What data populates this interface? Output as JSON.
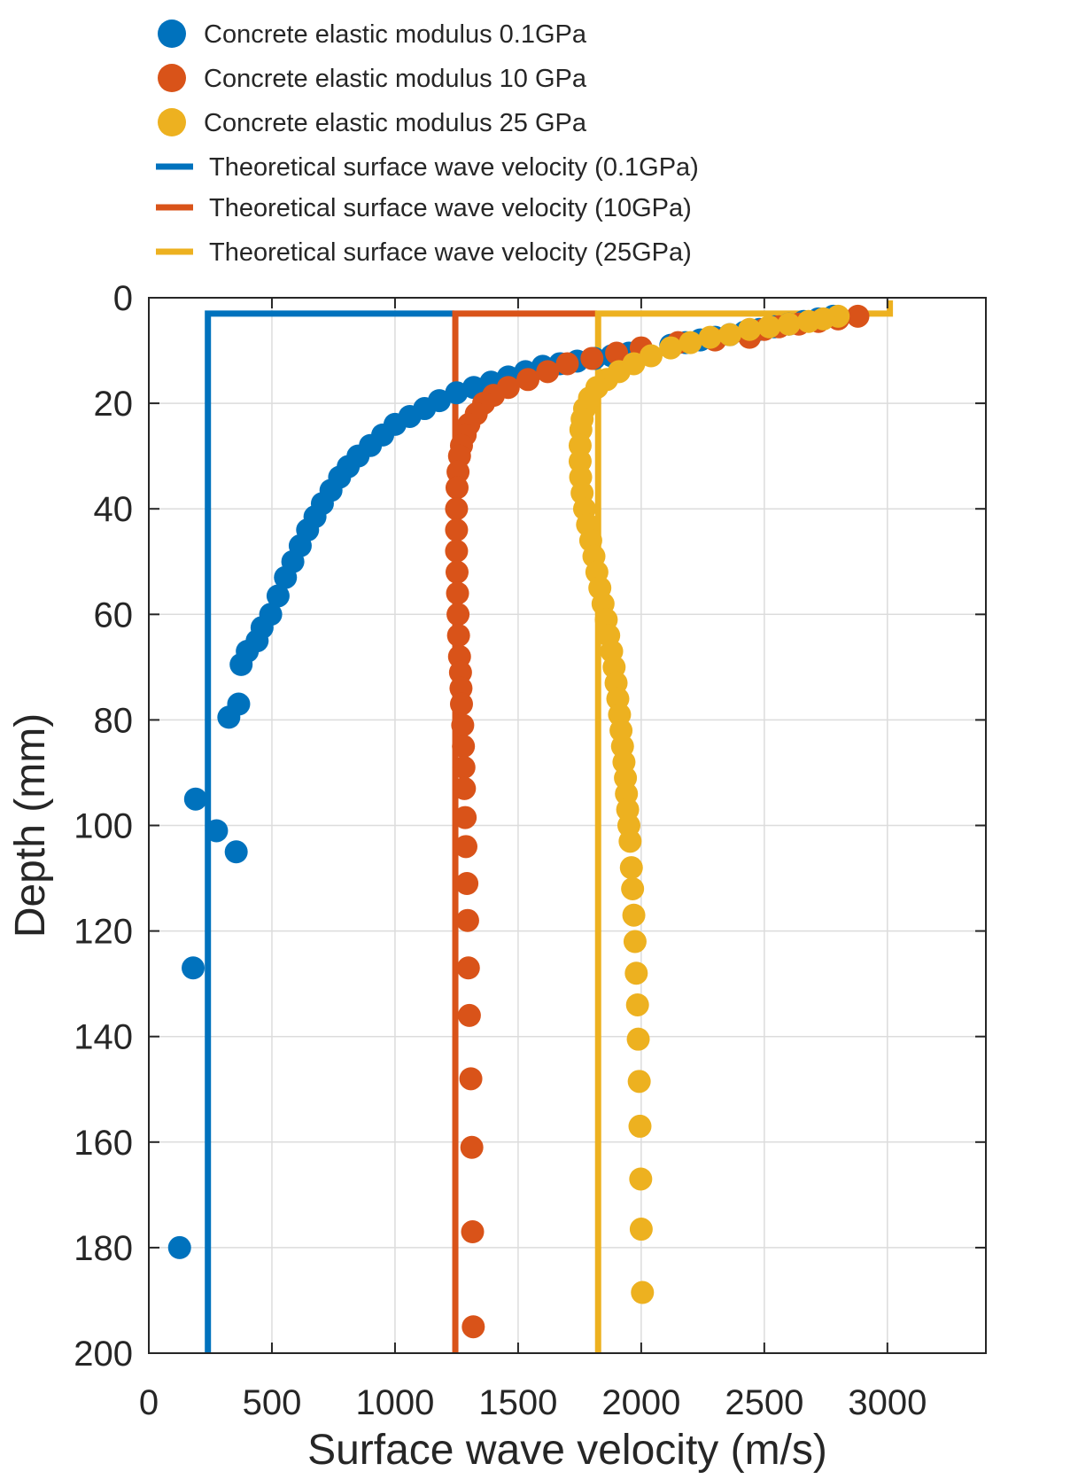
{
  "chart_data": {
    "type": "scatter",
    "xlabel": "Surface wave velocity (m/s)",
    "ylabel": "Depth (mm)",
    "xlim": [
      0,
      3400
    ],
    "ylim": [
      200,
      0
    ],
    "y_reversed": true,
    "xticks": [
      "0",
      "500",
      "1000",
      "1500",
      "2000",
      "2500",
      "3000"
    ],
    "yticks": [
      "0",
      "20",
      "40",
      "60",
      "80",
      "100",
      "120",
      "140",
      "160",
      "180",
      "200"
    ],
    "grid": true,
    "legend_position": "top-left, above plot",
    "series": [
      {
        "name": "Concrete elastic modulus 0.1GPa",
        "kind": "scatter",
        "color": "#0072BD",
        "points": [
          [
            2780,
            3.5
          ],
          [
            2720,
            4
          ],
          [
            2660,
            4.5
          ],
          [
            2600,
            5
          ],
          [
            2540,
            5.5
          ],
          [
            2480,
            6
          ],
          [
            2420,
            6.5
          ],
          [
            2360,
            7
          ],
          [
            2300,
            7.5
          ],
          [
            2240,
            8
          ],
          [
            2180,
            8.5
          ],
          [
            2120,
            9
          ],
          [
            1950,
            10.5
          ],
          [
            1880,
            11
          ],
          [
            1810,
            11.5
          ],
          [
            1740,
            12
          ],
          [
            1670,
            12.5
          ],
          [
            1600,
            13
          ],
          [
            1530,
            14
          ],
          [
            1460,
            15
          ],
          [
            1390,
            16
          ],
          [
            1320,
            17
          ],
          [
            1250,
            18
          ],
          [
            1180,
            19.5
          ],
          [
            1120,
            21
          ],
          [
            1060,
            22.5
          ],
          [
            1000,
            24
          ],
          [
            950,
            26
          ],
          [
            900,
            28
          ],
          [
            850,
            30
          ],
          [
            810,
            32
          ],
          [
            775,
            34
          ],
          [
            740,
            36.5
          ],
          [
            705,
            39
          ],
          [
            675,
            41.5
          ],
          [
            645,
            44
          ],
          [
            615,
            47
          ],
          [
            585,
            50
          ],
          [
            555,
            53
          ],
          [
            525,
            56.5
          ],
          [
            495,
            60
          ],
          [
            460,
            62.5
          ],
          [
            440,
            65
          ],
          [
            400,
            67
          ],
          [
            375,
            69.5
          ],
          [
            365,
            77
          ],
          [
            325,
            79.5
          ],
          [
            190,
            95
          ],
          [
            275,
            101
          ],
          [
            355,
            105
          ],
          [
            180,
            127
          ],
          [
            125,
            180
          ]
        ]
      },
      {
        "name": "Concrete elastic modulus 10 GPa",
        "kind": "scatter",
        "color": "#D95319",
        "points": [
          [
            2880,
            3.5
          ],
          [
            2800,
            4
          ],
          [
            2720,
            4.5
          ],
          [
            2640,
            5
          ],
          [
            2560,
            5.5
          ],
          [
            2500,
            6
          ],
          [
            2440,
            7.5
          ],
          [
            2300,
            8
          ],
          [
            2150,
            8.5
          ],
          [
            2000,
            9.5
          ],
          [
            1900,
            10.5
          ],
          [
            1800,
            11.5
          ],
          [
            1700,
            12.5
          ],
          [
            1620,
            14
          ],
          [
            1540,
            15.5
          ],
          [
            1460,
            17
          ],
          [
            1400,
            18.5
          ],
          [
            1360,
            20
          ],
          [
            1330,
            22
          ],
          [
            1300,
            24
          ],
          [
            1285,
            26
          ],
          [
            1270,
            28
          ],
          [
            1262,
            30
          ],
          [
            1256,
            33
          ],
          [
            1252,
            36
          ],
          [
            1250,
            40
          ],
          [
            1250,
            44
          ],
          [
            1250,
            48
          ],
          [
            1252,
            52
          ],
          [
            1254,
            56
          ],
          [
            1256,
            60
          ],
          [
            1258,
            64
          ],
          [
            1262,
            68
          ],
          [
            1266,
            71
          ],
          [
            1268,
            74
          ],
          [
            1270,
            77
          ],
          [
            1275,
            81
          ],
          [
            1278,
            85
          ],
          [
            1280,
            89
          ],
          [
            1282,
            93
          ],
          [
            1285,
            98.5
          ],
          [
            1288,
            104
          ],
          [
            1292,
            111
          ],
          [
            1295,
            118
          ],
          [
            1298,
            127
          ],
          [
            1302,
            136
          ],
          [
            1308,
            148
          ],
          [
            1312,
            161
          ],
          [
            1315,
            177
          ],
          [
            1318,
            195
          ]
        ]
      },
      {
        "name": "Concrete elastic modulus 25 GPa",
        "kind": "scatter",
        "color": "#EDB120",
        "points": [
          [
            2800,
            3.5
          ],
          [
            2740,
            4
          ],
          [
            2680,
            4.5
          ],
          [
            2600,
            5
          ],
          [
            2520,
            5.5
          ],
          [
            2440,
            6
          ],
          [
            2360,
            7
          ],
          [
            2280,
            7.5
          ],
          [
            2200,
            8.5
          ],
          [
            2120,
            9.5
          ],
          [
            2040,
            11
          ],
          [
            1970,
            12.5
          ],
          [
            1910,
            14
          ],
          [
            1860,
            15.5
          ],
          [
            1820,
            17
          ],
          [
            1790,
            19
          ],
          [
            1770,
            21
          ],
          [
            1760,
            23
          ],
          [
            1755,
            25
          ],
          [
            1752,
            28
          ],
          [
            1752,
            31
          ],
          [
            1754,
            34
          ],
          [
            1760,
            37
          ],
          [
            1770,
            40
          ],
          [
            1782,
            43
          ],
          [
            1795,
            46
          ],
          [
            1808,
            49
          ],
          [
            1820,
            52
          ],
          [
            1832,
            55
          ],
          [
            1845,
            58
          ],
          [
            1858,
            61
          ],
          [
            1868,
            64
          ],
          [
            1880,
            67
          ],
          [
            1890,
            70
          ],
          [
            1898,
            73
          ],
          [
            1905,
            76
          ],
          [
            1912,
            79
          ],
          [
            1918,
            82
          ],
          [
            1924,
            85
          ],
          [
            1930,
            88
          ],
          [
            1936,
            91
          ],
          [
            1940,
            94
          ],
          [
            1945,
            97
          ],
          [
            1950,
            100
          ],
          [
            1955,
            103
          ],
          [
            1960,
            108
          ],
          [
            1965,
            112
          ],
          [
            1970,
            117
          ],
          [
            1975,
            122
          ],
          [
            1980,
            128
          ],
          [
            1985,
            134
          ],
          [
            1988,
            140.5
          ],
          [
            1992,
            148.5
          ],
          [
            1995,
            157
          ],
          [
            1998,
            167
          ],
          [
            2000,
            176.5
          ],
          [
            2005,
            188.5
          ]
        ]
      },
      {
        "name": "Theoretical surface wave velocity (0.1GPa)",
        "kind": "line",
        "color": "#0072BD",
        "points": [
          [
            1240,
            3
          ],
          [
            240,
            3
          ],
          [
            240,
            200
          ]
        ]
      },
      {
        "name": "Theoretical surface wave velocity (10GPa)",
        "kind": "line",
        "color": "#D95319",
        "points": [
          [
            1820,
            3
          ],
          [
            1245,
            3
          ],
          [
            1245,
            200
          ]
        ]
      },
      {
        "name": "Theoretical surface wave velocity (25GPa)",
        "kind": "line",
        "color": "#EDB120",
        "points": [
          [
            3010,
            0.5
          ],
          [
            3010,
            3
          ],
          [
            1825,
            3
          ],
          [
            1825,
            200
          ]
        ]
      }
    ]
  }
}
